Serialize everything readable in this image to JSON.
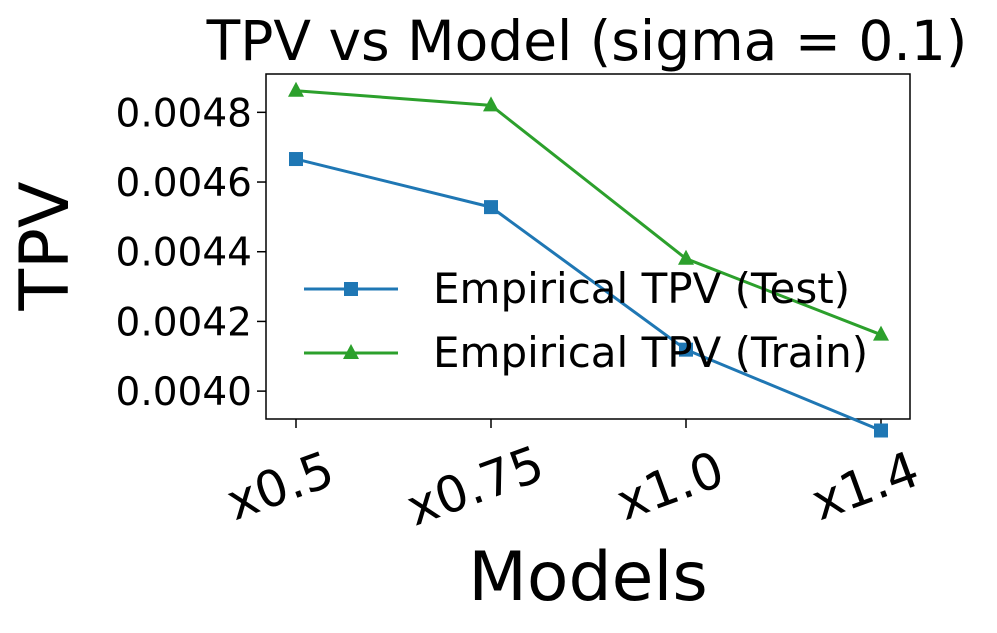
{
  "chart_data": {
    "type": "line",
    "title": "TPV vs Model (sigma = 0.1)",
    "xlabel": "Models",
    "ylabel": "TPV",
    "categories": [
      "x0.5",
      "x0.75",
      "x1.0",
      "x1.4"
    ],
    "ylim": [
      0.00392,
      0.00491
    ],
    "yticks": [
      0.004,
      0.0042,
      0.0044,
      0.0046,
      0.0048
    ],
    "ytick_labels": [
      "0.0040",
      "0.0042",
      "0.0044",
      "0.0046",
      "0.0048"
    ],
    "grid": false,
    "legend_position": "center-right",
    "series": [
      {
        "name": "Empirical TPV (Test)",
        "color": "#1f77b4",
        "marker": "square",
        "values": [
          0.004666,
          0.004528,
          0.004119,
          0.003887
        ]
      },
      {
        "name": "Empirical TPV (Train)",
        "color": "#2ca02c",
        "marker": "triangle",
        "values": [
          0.004862,
          0.00482,
          0.00438,
          0.004162
        ]
      }
    ]
  }
}
